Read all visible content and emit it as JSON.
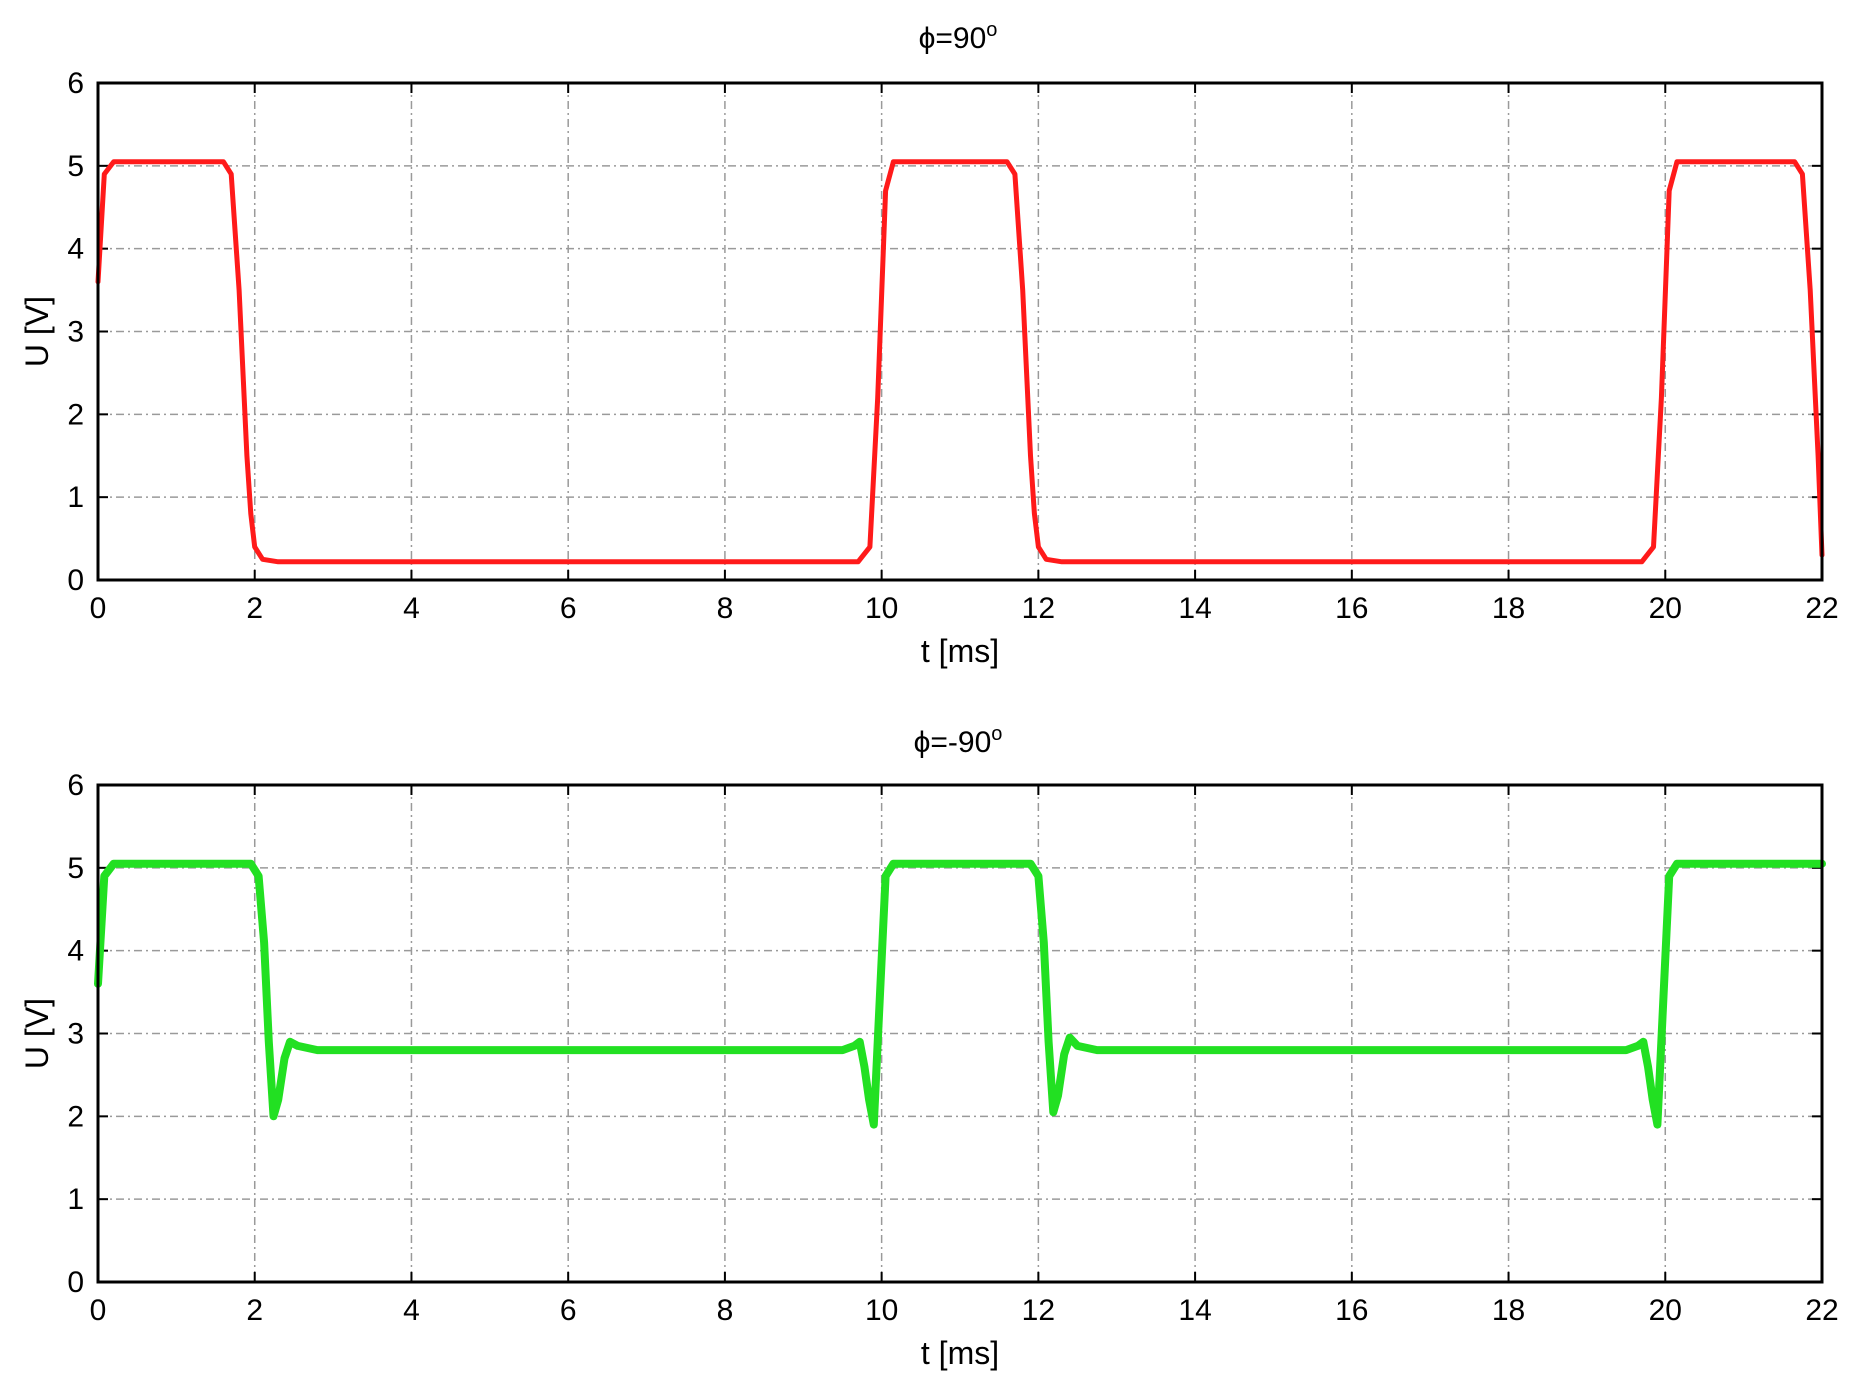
{
  "chart_data": [
    {
      "type": "line",
      "title": "=90",
      "title_symbol": "ϕ",
      "title_superscript": "o",
      "xlabel": "t [ms]",
      "ylabel": "U [V]",
      "xlim": [
        0,
        22
      ],
      "ylim": [
        0,
        6
      ],
      "xticks": [
        "0",
        "2",
        "4",
        "6",
        "8",
        "10",
        "12",
        "14",
        "16",
        "18",
        "20",
        "22"
      ],
      "yticks": [
        "0",
        "1",
        "2",
        "3",
        "4",
        "5",
        "6"
      ],
      "grid": true,
      "line_color": "#ff1a1a",
      "series": [
        {
          "x": [
            0,
            0.08,
            0.2,
            1.6,
            1.7,
            1.8,
            1.9,
            1.95,
            2.0,
            2.1,
            2.3,
            9.7,
            9.85,
            9.95,
            10.05,
            10.15,
            11.6,
            11.7,
            11.8,
            11.9,
            11.95,
            12.0,
            12.1,
            12.3,
            19.7,
            19.85,
            19.95,
            20.05,
            20.15,
            21.65,
            21.75,
            21.85,
            21.95,
            22.0
          ],
          "y": [
            3.6,
            4.9,
            5.05,
            5.05,
            4.9,
            3.5,
            1.5,
            0.8,
            0.4,
            0.25,
            0.22,
            0.22,
            0.4,
            2.2,
            4.7,
            5.05,
            5.05,
            4.9,
            3.5,
            1.5,
            0.8,
            0.4,
            0.25,
            0.22,
            0.22,
            0.4,
            2.2,
            4.7,
            5.05,
            5.05,
            4.9,
            3.5,
            1.5,
            0.3
          ]
        }
      ]
    },
    {
      "type": "line",
      "title": "=-90",
      "title_symbol": "ϕ",
      "title_superscript": "o",
      "xlabel": "t [ms]",
      "ylabel": "U [V]",
      "xlim": [
        0,
        22
      ],
      "ylim": [
        0,
        6
      ],
      "xticks": [
        "0",
        "2",
        "4",
        "6",
        "8",
        "10",
        "12",
        "14",
        "16",
        "18",
        "20",
        "22"
      ],
      "yticks": [
        "0",
        "1",
        "2",
        "3",
        "4",
        "5",
        "6"
      ],
      "grid": true,
      "line_color": "#22e022",
      "series": [
        {
          "x": [
            0,
            0.08,
            0.2,
            1.95,
            2.05,
            2.12,
            2.18,
            2.24,
            2.3,
            2.38,
            2.45,
            2.55,
            2.8,
            9.5,
            9.65,
            9.72,
            9.78,
            9.84,
            9.9,
            9.97,
            10.05,
            10.15,
            11.9,
            12.0,
            12.07,
            12.13,
            12.19,
            12.25,
            12.33,
            12.4,
            12.5,
            12.75,
            19.5,
            19.65,
            19.72,
            19.78,
            19.84,
            19.9,
            19.97,
            20.05,
            20.15,
            22.0
          ],
          "y": [
            3.6,
            4.9,
            5.05,
            5.05,
            4.9,
            4.1,
            2.9,
            2.0,
            2.2,
            2.7,
            2.9,
            2.85,
            2.8,
            2.8,
            2.85,
            2.9,
            2.6,
            2.2,
            1.9,
            3.3,
            4.9,
            5.05,
            5.05,
            4.9,
            4.1,
            2.9,
            2.05,
            2.25,
            2.75,
            2.95,
            2.85,
            2.8,
            2.8,
            2.85,
            2.9,
            2.6,
            2.2,
            1.9,
            3.3,
            4.9,
            5.05,
            5.05
          ]
        }
      ]
    }
  ]
}
